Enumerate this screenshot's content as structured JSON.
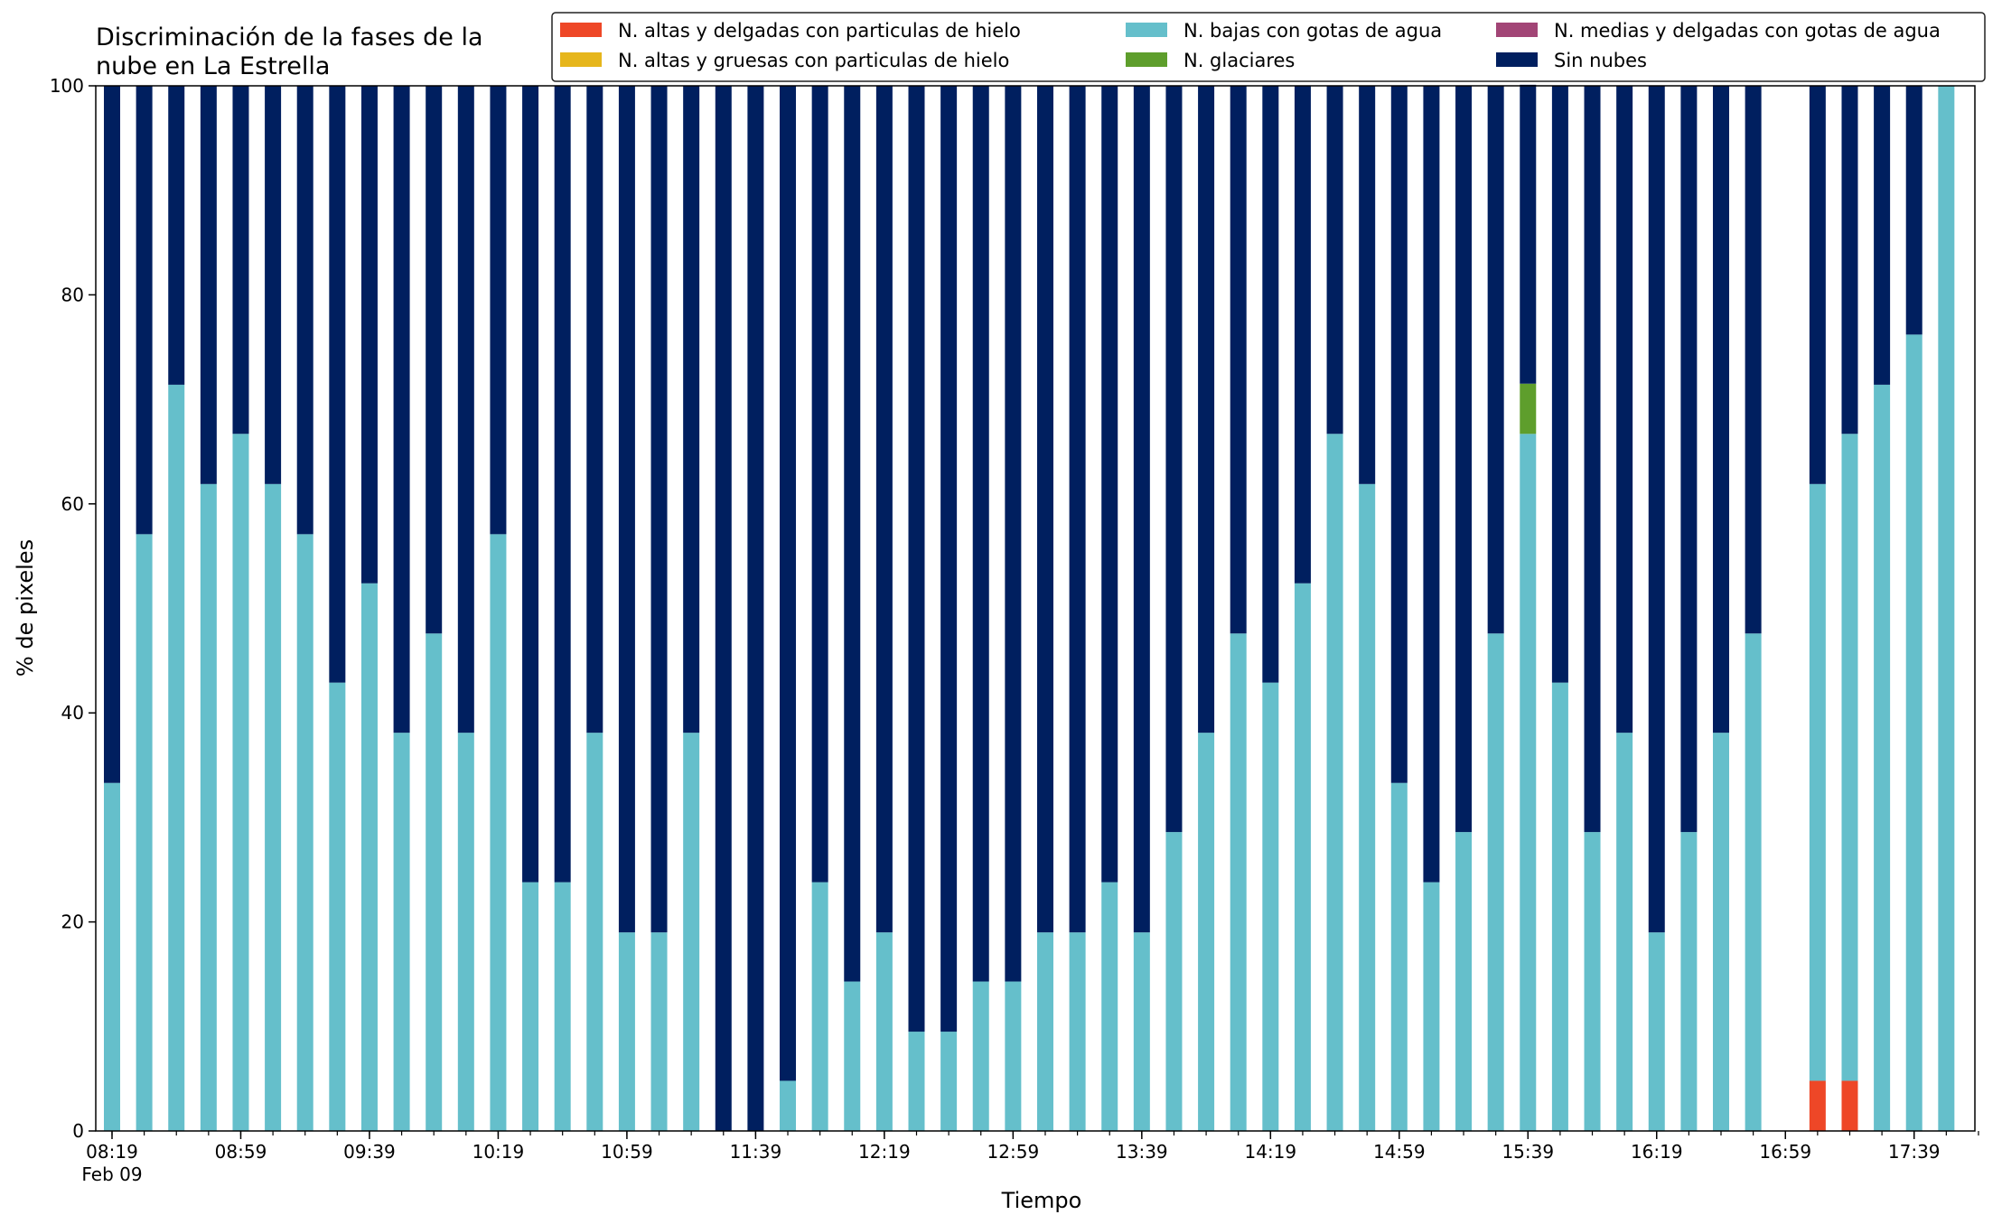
{
  "chart_data": {
    "type": "bar",
    "stacked": true,
    "title": "Discriminación de la fases de la\nnube en La Estrella",
    "xlabel": "Tiempo",
    "ylabel": "% de pixeles",
    "ylim": [
      0,
      100
    ],
    "yticks": [
      0,
      20,
      40,
      60,
      80,
      100
    ],
    "xtick_labels": [
      "08:19",
      "08:59",
      "09:39",
      "10:19",
      "10:59",
      "11:39",
      "12:19",
      "12:59",
      "13:39",
      "14:19",
      "14:59",
      "15:39",
      "16:19",
      "16:59",
      "17:39"
    ],
    "xtick_sublabel": "Feb 09",
    "grid": false,
    "legend_position": "top-right",
    "categories": [
      "08:19",
      "08:29",
      "08:39",
      "08:49",
      "08:59",
      "09:09",
      "09:19",
      "09:29",
      "09:39",
      "09:49",
      "09:59",
      "10:09",
      "10:19",
      "10:29",
      "10:39",
      "10:49",
      "10:59",
      "11:09",
      "11:19",
      "11:29",
      "11:39",
      "11:49",
      "11:59",
      "12:09",
      "12:19",
      "12:29",
      "12:39",
      "12:49",
      "12:59",
      "13:09",
      "13:19",
      "13:29",
      "13:39",
      "13:49",
      "13:59",
      "14:09",
      "14:19",
      "14:29",
      "14:39",
      "14:49",
      "14:59",
      "15:09",
      "15:19",
      "15:29",
      "15:39",
      "15:49",
      "15:59",
      "16:09",
      "16:19",
      "16:29",
      "16:39",
      "16:49",
      "16:59",
      "17:09",
      "17:19",
      "17:29",
      "17:39",
      "17:49"
    ],
    "series": [
      {
        "name": "N. altas y delgadas con particulas de hielo",
        "color": "#ee4727",
        "values": [
          0,
          0,
          0,
          0,
          0,
          0,
          0,
          0,
          0,
          0,
          0,
          0,
          0,
          0,
          0,
          0,
          0,
          0,
          0,
          0,
          0,
          0,
          0,
          0,
          0,
          0,
          0,
          0,
          0,
          0,
          0,
          0,
          0,
          0,
          0,
          0,
          0,
          0,
          0,
          0,
          0,
          0,
          0,
          0,
          0,
          0,
          0,
          0,
          0,
          0,
          0,
          0,
          0,
          4.8,
          4.8,
          0,
          0,
          0
        ]
      },
      {
        "name": "N. altas y gruesas con particulas de hielo",
        "color": "#e6b61c",
        "values": [
          0,
          0,
          0,
          0,
          0,
          0,
          0,
          0,
          0,
          0,
          0,
          0,
          0,
          0,
          0,
          0,
          0,
          0,
          0,
          0,
          0,
          0,
          0,
          0,
          0,
          0,
          0,
          0,
          0,
          0,
          0,
          0,
          0,
          0,
          0,
          0,
          0,
          0,
          0,
          0,
          0,
          0,
          0,
          0,
          0,
          0,
          0,
          0,
          0,
          0,
          0,
          0,
          0,
          0,
          0,
          0,
          0,
          0
        ]
      },
      {
        "name": "N. bajas con gotas de agua",
        "color": "#65bfcb",
        "values": [
          33.3,
          57.1,
          71.4,
          61.9,
          66.7,
          61.9,
          57.1,
          42.9,
          52.4,
          38.1,
          47.6,
          38.1,
          57.1,
          23.8,
          23.8,
          38.1,
          19.0,
          19.0,
          38.1,
          0,
          0,
          4.8,
          23.8,
          14.3,
          19.0,
          9.5,
          9.5,
          14.3,
          14.3,
          19.0,
          19.0,
          23.8,
          19.0,
          28.6,
          38.1,
          47.6,
          42.9,
          52.4,
          66.7,
          61.9,
          33.3,
          23.8,
          28.6,
          47.6,
          66.7,
          42.9,
          28.6,
          38.1,
          19.0,
          28.6,
          38.1,
          47.6,
          0,
          57.1,
          61.9,
          71.4,
          76.2,
          100
        ]
      },
      {
        "name": "N. glaciares",
        "color": "#5e9e2c",
        "values": [
          0,
          0,
          0,
          0,
          0,
          0,
          0,
          0,
          0,
          0,
          0,
          0,
          0,
          0,
          0,
          0,
          0,
          0,
          0,
          0,
          0,
          0,
          0,
          0,
          0,
          0,
          0,
          0,
          0,
          0,
          0,
          0,
          0,
          0,
          0,
          0,
          0,
          0,
          0,
          0,
          0,
          0,
          0,
          0,
          4.8,
          0,
          0,
          0,
          0,
          0,
          0,
          0,
          0,
          0,
          0,
          0,
          0,
          0
        ]
      },
      {
        "name": "N. medias y delgadas con gotas de agua",
        "color": "#a24576",
        "values": [
          0,
          0,
          0,
          0,
          0,
          0,
          0,
          0,
          0,
          0,
          0,
          0,
          0,
          0,
          0,
          0,
          0,
          0,
          0,
          0,
          0,
          0,
          0,
          0,
          0,
          0,
          0,
          0,
          0,
          0,
          0,
          0,
          0,
          0,
          0,
          0,
          0,
          0,
          0,
          0,
          0,
          0,
          0,
          0,
          0,
          0,
          0,
          0,
          0,
          0,
          0,
          0,
          0,
          0,
          0,
          0,
          0,
          0
        ]
      },
      {
        "name": "Sin nubes",
        "color": "#001f5f",
        "values": [
          66.7,
          42.9,
          28.6,
          38.1,
          33.3,
          38.1,
          42.9,
          57.1,
          47.6,
          61.9,
          52.4,
          61.9,
          42.9,
          76.2,
          76.2,
          61.9,
          81.0,
          81.0,
          61.9,
          100,
          100,
          95.2,
          76.2,
          85.7,
          81.0,
          90.5,
          90.5,
          85.7,
          85.7,
          81.0,
          81.0,
          76.2,
          81.0,
          71.4,
          61.9,
          52.4,
          57.1,
          47.6,
          33.3,
          38.1,
          66.7,
          76.2,
          71.4,
          52.4,
          28.6,
          57.1,
          71.4,
          61.9,
          81.0,
          71.4,
          61.9,
          52.4,
          0,
          38.1,
          33.3,
          28.6,
          23.8,
          0
        ]
      }
    ]
  }
}
